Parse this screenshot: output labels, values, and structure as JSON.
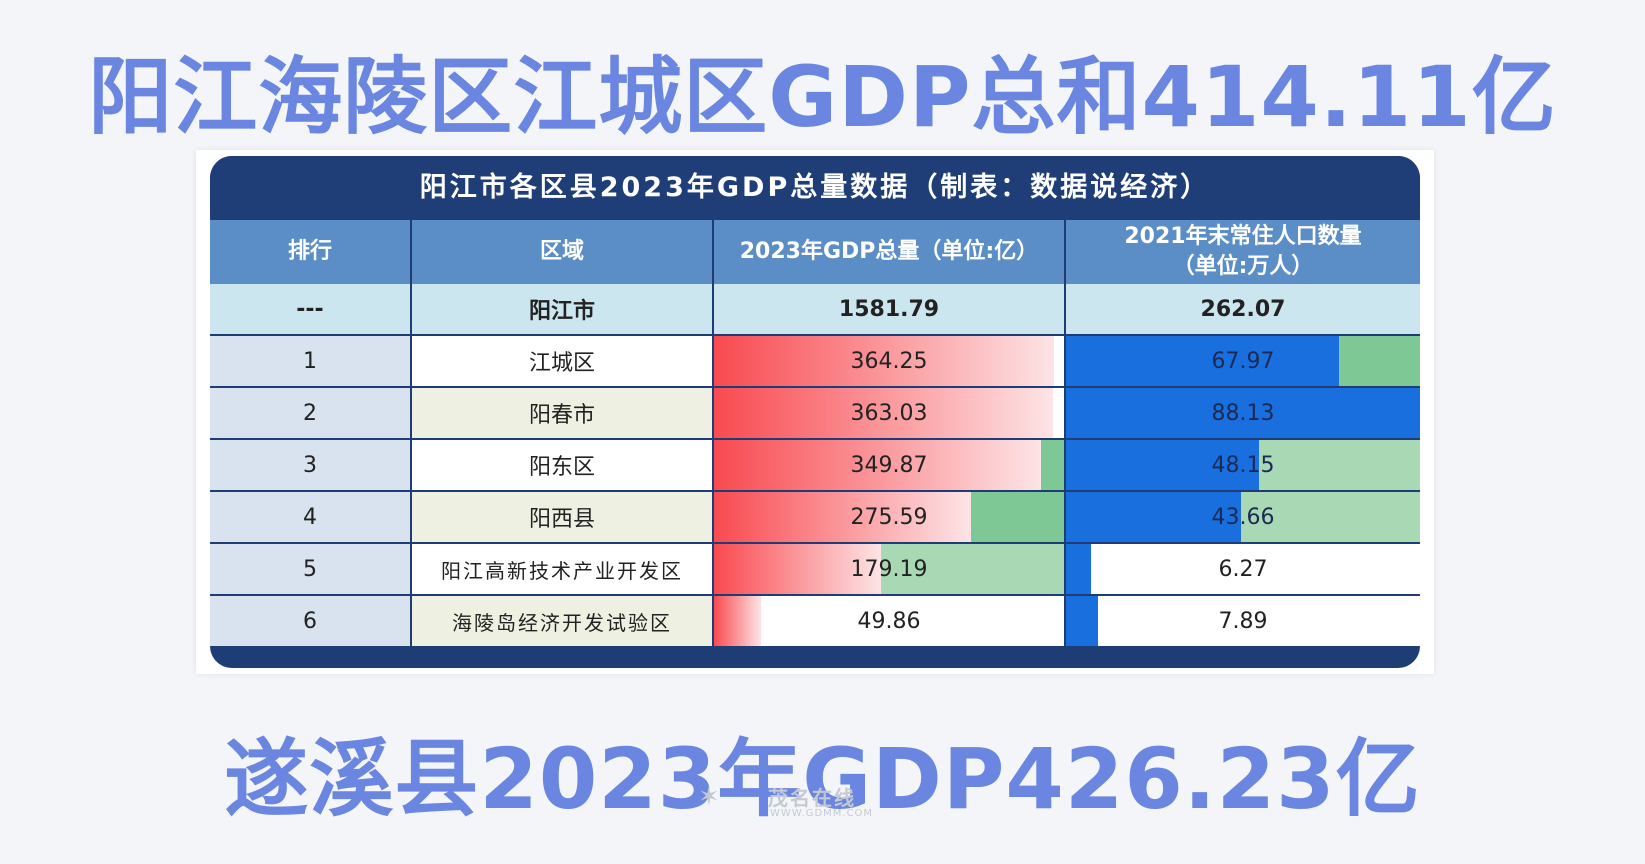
{
  "headline_top": "阳江海陵区江城区GDP总和414.11亿",
  "headline_bottom": "遂溪县2023年GDP426.23亿",
  "table": {
    "title": "阳江市各区县2023年GDP总量数据（制表：数据说经济）",
    "headers": {
      "rank": "排行",
      "region": "区域",
      "gdp": "2023年GDP总量（单位:亿）",
      "pop_line1": "2021年末常住人口数量",
      "pop_line2": "（单位:万人）"
    },
    "city_row": {
      "rank": "---",
      "region": "阳江市",
      "gdp": "1581.79",
      "pop": "262.07"
    },
    "rows": [
      {
        "rank": "1",
        "region": "江城区",
        "gdp": "364.25",
        "pop": "67.97"
      },
      {
        "rank": "2",
        "region": "阳春市",
        "gdp": "363.03",
        "pop": "88.13"
      },
      {
        "rank": "3",
        "region": "阳东区",
        "gdp": "349.87",
        "pop": "48.15"
      },
      {
        "rank": "4",
        "region": "阳西县",
        "gdp": "275.59",
        "pop": "43.66"
      },
      {
        "rank": "5",
        "region": "阳江高新技术产业开发区",
        "gdp": "179.19",
        "pop": "6.27"
      },
      {
        "rank": "6",
        "region": "海陵岛经济开发试验区",
        "gdp": "49.86",
        "pop": "7.89"
      }
    ]
  },
  "colors": {
    "headline": "#6a86e0",
    "title_bg": "#1f3e78",
    "header_bg": "#5b8dc7",
    "gdp_bar": "#f84a50",
    "pop_bar": "#1a6fde"
  },
  "watermark": {
    "main": "茂名在线",
    "sub": "WWW.GDMM.COM"
  }
}
